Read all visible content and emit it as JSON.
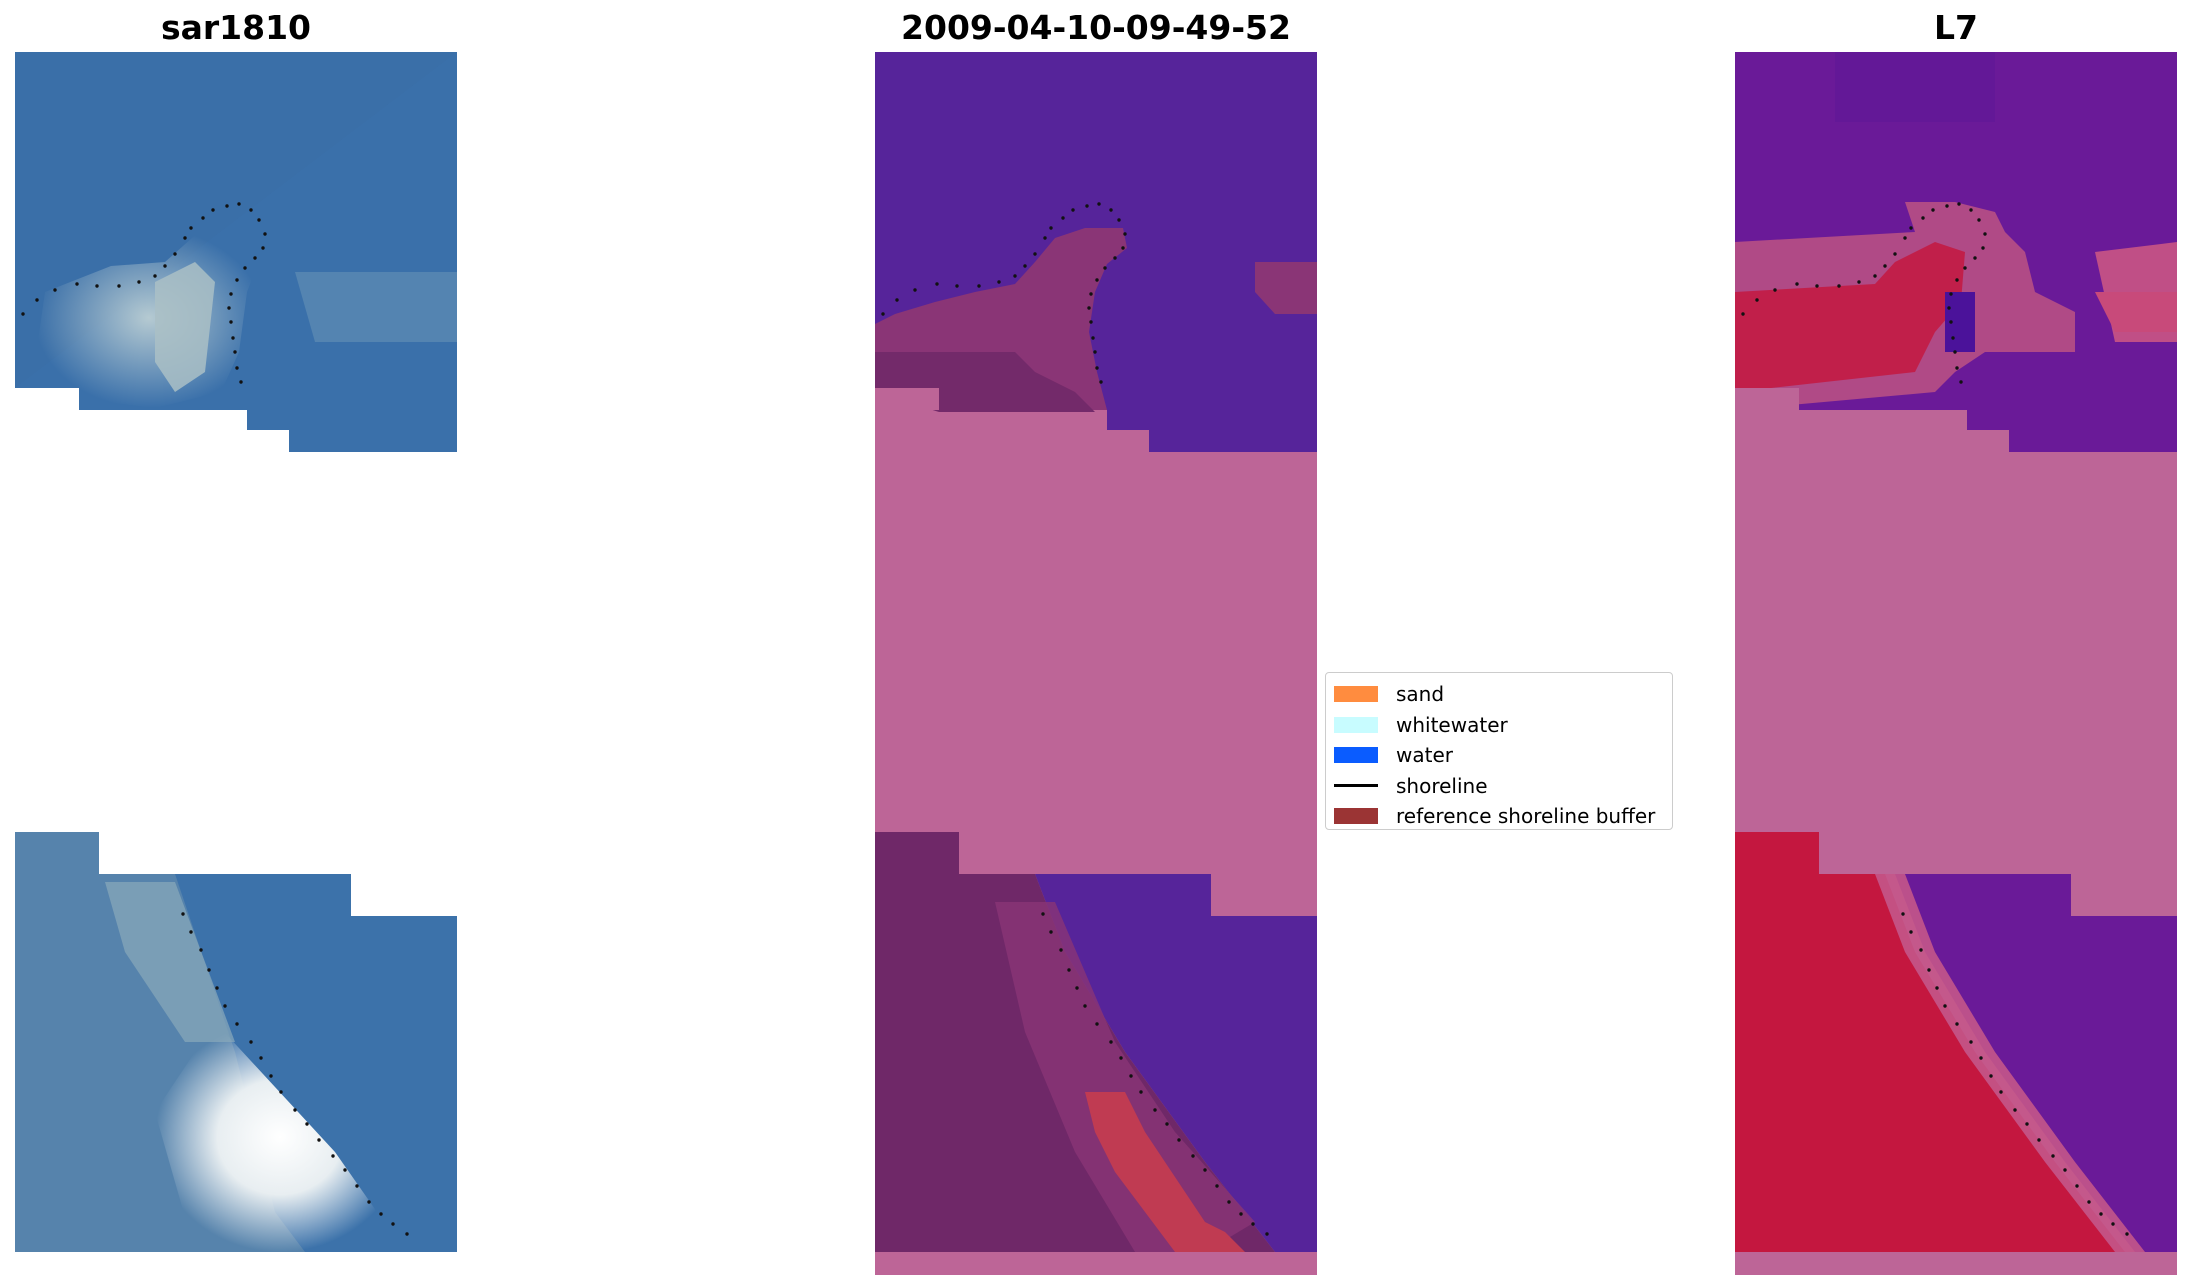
{
  "panels": [
    {
      "title": "sar1810"
    },
    {
      "title": "2009-04-10-09-49-52"
    },
    {
      "title": "L7"
    }
  ],
  "legend": {
    "items": [
      {
        "label": "sand",
        "color": "#ff8c3f"
      },
      {
        "label": "whitewater",
        "color": "#c8fcff"
      },
      {
        "label": "water",
        "color": "#0a5cff"
      },
      {
        "label": "shoreline",
        "color": "#000000"
      },
      {
        "label": "reference shoreline buffer",
        "color": "#9b3434"
      }
    ]
  },
  "colors": {
    "rgb_water": "#3a6fa8",
    "class_water": "#56249a",
    "class_nodata": "#bd6597",
    "class_land": "#6f2868",
    "buffer_red": "#c03b52",
    "mndwi_purple": "#6a1a98",
    "mndwi_red": "#c4173f"
  }
}
